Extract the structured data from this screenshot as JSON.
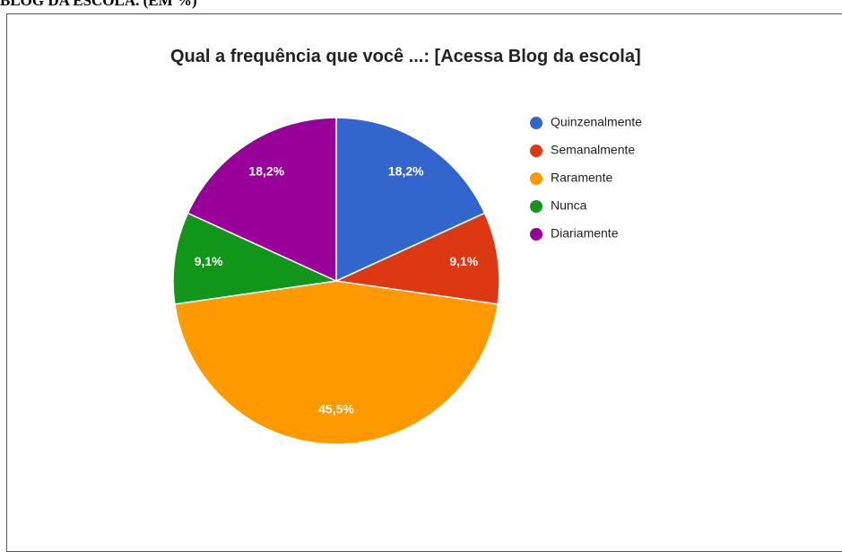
{
  "caption": "BLOG DA ESCOLA. (EM %)",
  "chart_data": {
    "type": "pie",
    "title": "Qual a frequência que você ...: [Acessa Blog da escola]",
    "categories": [
      "Quinzenalmente",
      "Semanalmente",
      "Raramente",
      "Nunca",
      "Diariamente"
    ],
    "values": [
      18.2,
      9.1,
      45.5,
      9.1,
      18.2
    ],
    "value_labels": [
      "18,2%",
      "9,1%",
      "45,5%",
      "9,1%",
      "18,2%"
    ],
    "colors": [
      "#3366cc",
      "#dc3912",
      "#ff9900",
      "#109618",
      "#990099"
    ],
    "legend": "right"
  }
}
